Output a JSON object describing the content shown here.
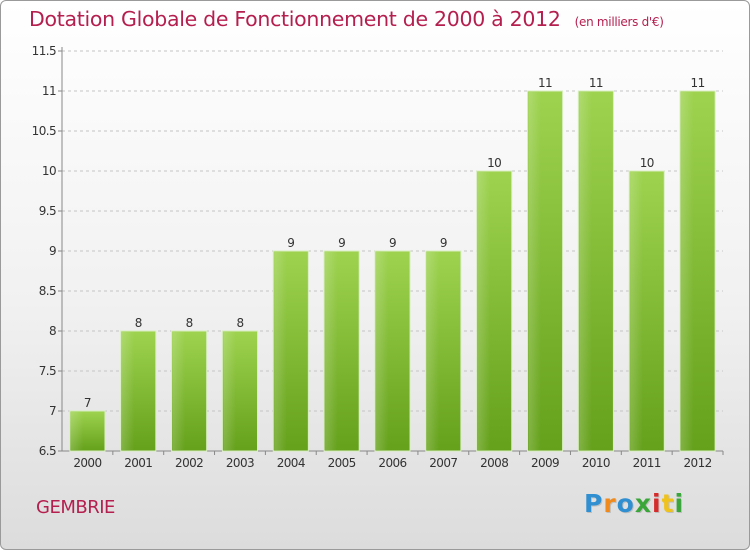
{
  "header": {
    "title": "Dotation Globale de Fonctionnement de 2000 à 2012",
    "unit": "(en milliers d'€)"
  },
  "commune": "GEMBRIE",
  "logo": {
    "letters": [
      "P",
      "r",
      "o",
      "x",
      "i",
      "t",
      "i"
    ],
    "colors": [
      "#2f8fd1",
      "#f08a1c",
      "#2f8fd1",
      "#3aa63a",
      "#d62b2b",
      "#f0c21c",
      "#3aa63a"
    ]
  },
  "colors": {
    "accent": "#b51f4f",
    "bar_light": "#9ed34f",
    "bar_dark": "#65a11b",
    "grid": "#c4c4c4"
  },
  "chart_data": {
    "type": "bar",
    "categories": [
      "2000",
      "2001",
      "2002",
      "2003",
      "2004",
      "2005",
      "2006",
      "2007",
      "2008",
      "2009",
      "2010",
      "2011",
      "2012"
    ],
    "values": [
      7,
      8,
      8,
      8,
      9,
      9,
      9,
      9,
      10,
      11,
      11,
      10,
      11
    ],
    "value_labels": [
      "7",
      "8",
      "8",
      "8",
      "9",
      "9",
      "9",
      "9",
      "10",
      "11",
      "11",
      "10",
      "11"
    ],
    "ylim": [
      6.5,
      11.5
    ],
    "yticks": [
      6.5,
      7,
      7.5,
      8,
      8.5,
      9,
      9.5,
      10,
      10.5,
      11,
      11.5
    ],
    "ytick_labels": [
      "6.5",
      "7",
      "7.5",
      "8",
      "8.5",
      "9",
      "9.5",
      "10",
      "10.5",
      "11",
      "11.5"
    ],
    "grid": true
  }
}
